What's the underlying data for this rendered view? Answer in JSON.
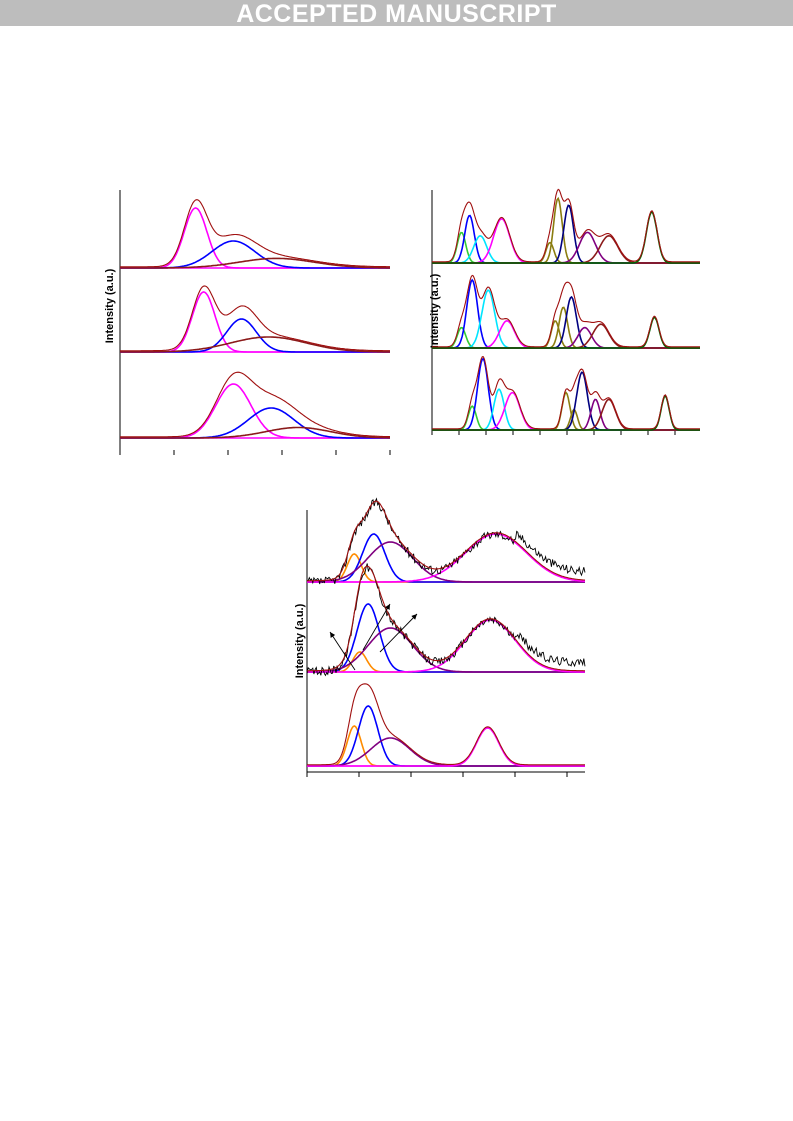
{
  "banner": {
    "text": "ACCEPTED MANUSCRIPT"
  },
  "colors": {
    "envelope": "#a01010",
    "experimental": "#000000",
    "magenta": "#ff00ff",
    "blue": "#0000ff",
    "darkred": "#8b1a1a",
    "cyan": "#00e5ff",
    "lime": "#33cc33",
    "olive": "#8b7d10",
    "navy": "#000080",
    "purple": "#800080",
    "darkgreen": "#006400",
    "orange": "#ff8c00"
  },
  "chart_data": [
    {
      "type": "line",
      "panel": "top-left",
      "ylabel": "Intensity (a.u.)",
      "x_range": [
        0,
        100
      ],
      "traces": [
        {
          "offset": 2,
          "components": [
            {
              "color": "magenta",
              "center": 28,
              "width": 4.2,
              "height": 20
            },
            {
              "color": "blue",
              "center": 42,
              "width": 8,
              "height": 9
            },
            {
              "color": "darkred",
              "center": 58,
              "width": 14,
              "height": 3.2
            }
          ]
        },
        {
          "offset": 1,
          "components": [
            {
              "color": "magenta",
              "center": 31,
              "width": 4.2,
              "height": 20
            },
            {
              "color": "blue",
              "center": 45,
              "width": 5.5,
              "height": 11
            },
            {
              "color": "darkred",
              "center": 55,
              "width": 14,
              "height": 5
            }
          ]
        },
        {
          "offset": 0,
          "components": [
            {
              "color": "magenta",
              "center": 42,
              "width": 6.5,
              "height": 18
            },
            {
              "color": "blue",
              "center": 56,
              "width": 8.5,
              "height": 10
            },
            {
              "color": "darkred",
              "center": 66,
              "width": 12,
              "height": 3.5
            }
          ]
        }
      ]
    },
    {
      "type": "line",
      "panel": "top-right",
      "ylabel": "Intensity (a.u.)",
      "x_range": [
        0,
        100
      ],
      "traces": [
        {
          "offset": 2,
          "components": [
            {
              "color": "lime",
              "center": 11,
              "width": 1.6,
              "height": 9
            },
            {
              "color": "blue",
              "center": 14,
              "width": 1.8,
              "height": 14
            },
            {
              "color": "cyan",
              "center": 18,
              "width": 2.4,
              "height": 8
            },
            {
              "color": "magenta",
              "center": 26,
              "width": 3,
              "height": 13
            },
            {
              "color": "olive",
              "center": 44,
              "width": 1.5,
              "height": 6
            },
            {
              "color": "olive",
              "center": 47,
              "width": 1.6,
              "height": 19
            },
            {
              "color": "navy",
              "center": 51,
              "width": 1.8,
              "height": 17
            },
            {
              "color": "purple",
              "center": 58,
              "width": 3,
              "height": 9
            },
            {
              "color": "darkred",
              "center": 66,
              "width": 3.3,
              "height": 8
            },
            {
              "color": "darkgreen",
              "center": 82,
              "width": 2,
              "height": 15
            }
          ]
        },
        {
          "offset": 1,
          "components": [
            {
              "color": "lime",
              "center": 11,
              "width": 1.6,
              "height": 6
            },
            {
              "color": "blue",
              "center": 15,
              "width": 2,
              "height": 20
            },
            {
              "color": "cyan",
              "center": 21,
              "width": 2.4,
              "height": 17
            },
            {
              "color": "magenta",
              "center": 28,
              "width": 2.8,
              "height": 8
            },
            {
              "color": "olive",
              "center": 46,
              "width": 1.5,
              "height": 8
            },
            {
              "color": "olive",
              "center": 49,
              "width": 1.6,
              "height": 12
            },
            {
              "color": "navy",
              "center": 52,
              "width": 1.9,
              "height": 15
            },
            {
              "color": "purple",
              "center": 57,
              "width": 2.5,
              "height": 6
            },
            {
              "color": "darkred",
              "center": 63,
              "width": 3,
              "height": 7
            },
            {
              "color": "darkgreen",
              "center": 83,
              "width": 1.7,
              "height": 9
            }
          ]
        },
        {
          "offset": 0,
          "components": [
            {
              "color": "lime",
              "center": 15,
              "width": 1.5,
              "height": 7
            },
            {
              "color": "blue",
              "center": 19,
              "width": 2,
              "height": 21
            },
            {
              "color": "cyan",
              "center": 25,
              "width": 1.9,
              "height": 12
            },
            {
              "color": "magenta",
              "center": 30,
              "width": 2.8,
              "height": 11
            },
            {
              "color": "olive",
              "center": 50,
              "width": 1.5,
              "height": 11
            },
            {
              "color": "olive",
              "center": 53,
              "width": 1.3,
              "height": 6
            },
            {
              "color": "navy",
              "center": 56,
              "width": 2,
              "height": 17
            },
            {
              "color": "purple",
              "center": 61,
              "width": 1.7,
              "height": 9
            },
            {
              "color": "darkred",
              "center": 66,
              "width": 2.5,
              "height": 9
            },
            {
              "color": "darkgreen",
              "center": 87,
              "width": 1.5,
              "height": 10
            }
          ]
        }
      ]
    },
    {
      "type": "line",
      "panel": "bottom",
      "ylabel": "Intensity (a.u.)",
      "x_range": [
        0,
        100
      ],
      "traces": [
        {
          "offset": 2,
          "experimental": true,
          "components": [
            {
              "color": "orange",
              "center": 17,
              "width": 2.5,
              "height": 7
            },
            {
              "color": "blue",
              "center": 24,
              "width": 4,
              "height": 12
            },
            {
              "color": "purple",
              "center": 30,
              "width": 8,
              "height": 10
            },
            {
              "color": "magenta",
              "center": 68,
              "width": 11,
              "height": 12
            }
          ]
        },
        {
          "offset": 1,
          "experimental": true,
          "components": [
            {
              "color": "orange",
              "center": 19,
              "width": 2.5,
              "height": 5
            },
            {
              "color": "blue",
              "center": 22,
              "width": 4,
              "height": 17
            },
            {
              "color": "purple",
              "center": 30,
              "width": 8,
              "height": 11
            },
            {
              "color": "magenta",
              "center": 66,
              "width": 9,
              "height": 13
            }
          ]
        },
        {
          "offset": 0,
          "experimental": false,
          "components": [
            {
              "color": "orange",
              "center": 17,
              "width": 2.5,
              "height": 10
            },
            {
              "color": "blue",
              "center": 22,
              "width": 3.5,
              "height": 15
            },
            {
              "color": "purple",
              "center": 30,
              "width": 7,
              "height": 7
            },
            {
              "color": "magenta",
              "center": 65,
              "width": 4,
              "height": 9.5
            }
          ]
        }
      ]
    }
  ]
}
